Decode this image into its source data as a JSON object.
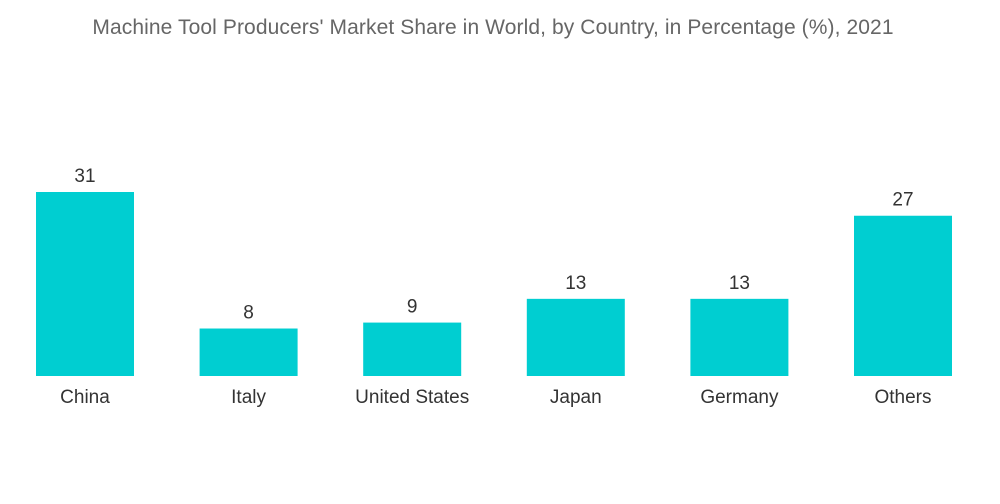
{
  "chart_data": {
    "type": "bar",
    "title": "Machine Tool Producers' Market Share in World, by Country, in Percentage (%), 2021",
    "categories": [
      "China",
      "Italy",
      "United States",
      "Japan",
      "Germany",
      "Others"
    ],
    "values": [
      31,
      8,
      9,
      13,
      13,
      27
    ],
    "xlabel": "",
    "ylabel": "",
    "ylim": [
      0,
      31
    ],
    "grid": false,
    "legend": "none",
    "bar_color": "#00CED1"
  }
}
